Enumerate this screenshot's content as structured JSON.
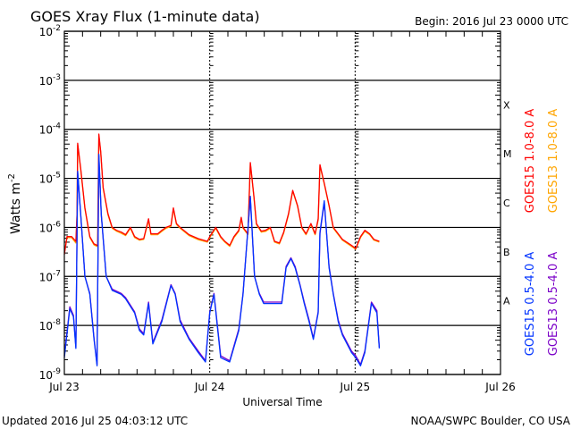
{
  "chart_data": {
    "type": "line",
    "title": "GOES Xray Flux (1-minute data)",
    "begin_label": "Begin:  2016 Jul 23 0000 UTC",
    "xlabel": "Universal Time",
    "ylabel": "Watts m",
    "ylabel_sup": "-2",
    "x_unit": "hours since 2016 Jul 23 0000 UTC",
    "xlim": [
      0,
      72
    ],
    "ylim": [
      1e-09,
      0.01
    ],
    "yscale": "log",
    "x_ticks": [
      {
        "x": 0,
        "label": "Jul 23"
      },
      {
        "x": 24,
        "label": "Jul 24"
      },
      {
        "x": 48,
        "label": "Jul 25"
      },
      {
        "x": 72,
        "label": "Jul 26"
      }
    ],
    "y_ticks": [
      {
        "exp": -2,
        "base": "10",
        "sup": "-2"
      },
      {
        "exp": -3,
        "base": "10",
        "sup": "-3"
      },
      {
        "exp": -4,
        "base": "10",
        "sup": "-4"
      },
      {
        "exp": -5,
        "base": "10",
        "sup": "-5"
      },
      {
        "exp": -6,
        "base": "10",
        "sup": "-6"
      },
      {
        "exp": -7,
        "base": "10",
        "sup": "-7"
      },
      {
        "exp": -8,
        "base": "10",
        "sup": "-8"
      },
      {
        "exp": -9,
        "base": "10",
        "sup": "-9"
      }
    ],
    "flare_classes": [
      {
        "label": "A",
        "exp": -7.5
      },
      {
        "label": "B",
        "exp": -6.5
      },
      {
        "label": "C",
        "exp": -5.5
      },
      {
        "label": "M",
        "exp": -4.5
      },
      {
        "label": "X",
        "exp": -3.5
      }
    ],
    "grid": true,
    "series": [
      {
        "name": "GOES13 1.0-8.0 A",
        "color": "#FFA500",
        "x": [
          0,
          0.45,
          1.2,
          1.9,
          2.1,
          2.2,
          2.7,
          3.4,
          4.2,
          4.9,
          5.4,
          5.5,
          5.7,
          6.0,
          6.4,
          7.2,
          7.9,
          8.6,
          9.4,
          10.1,
          10.9,
          11.6,
          12.4,
          13.1,
          13.9,
          14.3,
          15.4,
          16.1,
          16.8,
          17.6,
          18.0,
          18.5,
          19.1,
          20.6,
          22.1,
          23.6,
          24.0,
          25.0,
          25.8,
          26.5,
          27.3,
          28.0,
          28.8,
          29.2,
          29.5,
          30.3,
          30.7,
          31.3,
          31.7,
          32.5,
          33.2,
          34.0,
          34.7,
          35.5,
          36.2,
          37.0,
          37.7,
          38.5,
          39.2,
          39.9,
          40.7,
          41.4,
          41.9,
          42.2,
          42.9,
          43.7,
          44.4,
          45.9,
          47.4,
          48.1,
          48.9,
          49.6,
          50.4,
          51.1,
          52.0
        ],
        "y": [
          3e-07,
          6.2e-07,
          6.2e-07,
          4.8e-07,
          1.8e-06,
          4.8e-05,
          1.5e-05,
          2.4e-06,
          6.2e-07,
          4.4e-07,
          4.1e-07,
          4.1e-07,
          7.5e-05,
          3.4e-05,
          6.3e-06,
          1.8e-06,
          9.6e-07,
          8.4e-07,
          7.6e-07,
          6.8e-07,
          9.6e-07,
          6.2e-07,
          5.5e-07,
          5.7e-07,
          1.4e-06,
          7.1e-07,
          7.1e-07,
          8.3e-07,
          9.6e-07,
          1.05e-06,
          2.4e-06,
          1.15e-06,
          9.6e-07,
          6.8e-07,
          5.6e-07,
          5e-07,
          6.2e-07,
          9.6e-07,
          6.2e-07,
          5e-07,
          4.1e-07,
          6.2e-07,
          8.3e-07,
          1.5e-06,
          9.6e-07,
          7.1e-07,
          2e-05,
          4.1e-06,
          1.15e-06,
          8e-07,
          8.3e-07,
          9.6e-07,
          5e-07,
          4.6e-07,
          7.6e-07,
          1.8e-06,
          5.5e-06,
          2.7e-06,
          9.6e-07,
          7.1e-07,
          1.15e-06,
          7.1e-07,
          1.4e-06,
          1.8e-05,
          7.7e-06,
          2.7e-06,
          9.6e-07,
          5.5e-07,
          4.1e-07,
          3.6e-07,
          6.2e-07,
          8.3e-07,
          7.1e-07,
          5.5e-07,
          5e-07
        ]
      },
      {
        "name": "GOES15 1.0-8.0 A",
        "color": "#FF0000",
        "x": [
          0,
          0.45,
          1.2,
          1.9,
          2.1,
          2.2,
          2.7,
          3.4,
          4.2,
          4.9,
          5.4,
          5.5,
          5.7,
          6.0,
          6.4,
          7.2,
          7.9,
          8.6,
          9.4,
          10.1,
          10.9,
          11.6,
          12.4,
          13.1,
          13.9,
          14.3,
          15.4,
          16.1,
          16.8,
          17.6,
          18.0,
          18.5,
          19.1,
          20.6,
          22.1,
          23.6,
          24.0,
          25.0,
          25.8,
          26.5,
          27.3,
          28.0,
          28.8,
          29.2,
          29.5,
          30.3,
          30.7,
          31.3,
          31.7,
          32.5,
          33.2,
          34.0,
          34.7,
          35.5,
          36.2,
          37.0,
          37.7,
          38.5,
          39.2,
          39.9,
          40.7,
          41.4,
          41.9,
          42.2,
          42.9,
          43.7,
          44.4,
          45.9,
          47.4,
          48.1,
          48.9,
          49.6,
          50.4,
          51.1,
          52.0
        ],
        "y": [
          2.8e-07,
          6.5e-07,
          6.5e-07,
          5.2e-07,
          1.9e-06,
          5.2e-05,
          1.6e-05,
          2.5e-06,
          6.5e-07,
          4.6e-07,
          4.3e-07,
          4.3e-07,
          8e-05,
          3.5e-05,
          6.5e-06,
          1.9e-06,
          1e-06,
          8.7e-07,
          8e-07,
          7.1e-07,
          1e-06,
          6.5e-07,
          5.7e-07,
          5.9e-07,
          1.5e-06,
          7.4e-07,
          7.4e-07,
          8.7e-07,
          1e-06,
          1.1e-06,
          2.5e-06,
          1.2e-06,
          1e-06,
          7.1e-07,
          5.9e-07,
          5.2e-07,
          6.5e-07,
          1e-06,
          6.5e-07,
          5.2e-07,
          4.3e-07,
          6.5e-07,
          8.7e-07,
          1.6e-06,
          1e-06,
          7.4e-07,
          2.1e-05,
          4.3e-06,
          1.2e-06,
          8.4e-07,
          8.7e-07,
          1e-06,
          5.2e-07,
          4.8e-07,
          8e-07,
          1.9e-06,
          5.7e-06,
          2.8e-06,
          1e-06,
          7.4e-07,
          1.2e-06,
          7.4e-07,
          1.5e-06,
          1.9e-05,
          8e-06,
          2.8e-06,
          1e-06,
          5.7e-07,
          4.3e-07,
          3.7e-07,
          6.5e-07,
          8.7e-07,
          7.4e-07,
          5.7e-07,
          5.2e-07
        ]
      },
      {
        "name": "GOES13 0.5-4.0 A",
        "color": "#7B00C8",
        "x": [
          0,
          0.9,
          1.5,
          1.9,
          2.2,
          2.7,
          3.4,
          4.2,
          4.9,
          5.4,
          5.7,
          6.1,
          6.9,
          7.9,
          9.4,
          10.1,
          11.6,
          12.4,
          13.1,
          13.9,
          14.6,
          16.1,
          17.6,
          18.3,
          19.1,
          20.6,
          22.1,
          23.3,
          24.0,
          24.7,
          25.8,
          27.3,
          28.8,
          29.5,
          30.7,
          31.4,
          32.2,
          32.9,
          34.4,
          35.9,
          36.6,
          37.4,
          38.1,
          38.9,
          39.6,
          40.4,
          41.1,
          41.9,
          42.2,
          42.9,
          43.7,
          44.4,
          45.2,
          45.9,
          47.4,
          48.1,
          48.9,
          49.6,
          50.7,
          51.6,
          52.0
        ],
        "y": [
          2.4e-09,
          2.4e-08,
          1.6e-08,
          3.6e-09,
          1.3e-05,
          1.8e-06,
          1e-07,
          4.5e-08,
          5.5e-09,
          1.6e-09,
          2.9e-05,
          1.8e-06,
          1e-07,
          5.5e-08,
          4.5e-08,
          3.7e-08,
          1.9e-08,
          8.5e-09,
          6.8e-09,
          3e-08,
          4.5e-09,
          1.3e-08,
          6.8e-08,
          4.5e-08,
          1.3e-08,
          5.5e-09,
          3e-09,
          1.9e-09,
          1.9e-08,
          4.5e-08,
          2.4e-09,
          1.9e-09,
          8.5e-09,
          4.5e-08,
          4e-06,
          1e-07,
          4.5e-08,
          3e-08,
          3e-08,
          3e-08,
          1.6e-07,
          2.4e-07,
          1.6e-07,
          6.8e-08,
          3e-08,
          1.3e-08,
          5.5e-09,
          1.9e-08,
          7.5e-07,
          3.2e-06,
          1.6e-07,
          4.5e-08,
          1.3e-08,
          6.8e-09,
          3e-09,
          2.4e-09,
          1.6e-09,
          3e-09,
          3e-08,
          2e-08,
          3.6e-09
        ]
      },
      {
        "name": "GOES15 0.5-4.0 A",
        "color": "#0033FF",
        "x": [
          0,
          0.9,
          1.5,
          1.9,
          2.2,
          2.7,
          3.4,
          4.2,
          4.9,
          5.4,
          5.7,
          6.1,
          6.9,
          7.9,
          9.4,
          10.1,
          11.6,
          12.4,
          13.1,
          13.9,
          14.6,
          16.1,
          17.6,
          18.3,
          19.1,
          20.6,
          22.1,
          23.3,
          24.0,
          24.7,
          25.8,
          27.3,
          28.8,
          29.5,
          30.7,
          31.4,
          32.2,
          32.9,
          34.4,
          35.9,
          36.6,
          37.4,
          38.1,
          38.9,
          39.6,
          40.4,
          41.1,
          41.9,
          42.2,
          42.9,
          43.7,
          44.4,
          45.2,
          45.9,
          47.4,
          48.1,
          48.9,
          49.6,
          50.7,
          51.6,
          52.0
        ],
        "y": [
          2.2e-09,
          2.2e-08,
          1.5e-08,
          3.4e-09,
          1.4e-05,
          1.9e-06,
          1e-07,
          4.3e-08,
          5.2e-09,
          1.5e-09,
          3.1e-05,
          1.9e-06,
          1e-07,
          5.2e-08,
          4.3e-08,
          3.5e-08,
          1.8e-08,
          7.9e-09,
          6.4e-09,
          2.8e-08,
          4.2e-09,
          1.2e-08,
          6.5e-08,
          4.3e-08,
          1.2e-08,
          5.2e-09,
          2.8e-09,
          1.8e-09,
          1.8e-08,
          4.3e-08,
          2.2e-09,
          1.8e-09,
          7.9e-09,
          4.3e-08,
          4.3e-06,
          1e-07,
          4.3e-08,
          2.8e-08,
          2.8e-08,
          2.8e-08,
          1.5e-07,
          2.3e-07,
          1.5e-07,
          6.5e-08,
          2.8e-08,
          1.2e-08,
          5.2e-09,
          1.8e-08,
          8e-07,
          3.5e-06,
          1.5e-07,
          4.3e-08,
          1.2e-08,
          6.4e-09,
          2.8e-09,
          2.2e-09,
          1.5e-09,
          2.8e-09,
          2.8e-08,
          1.8e-08,
          3.4e-09
        ]
      }
    ],
    "legend_placement": "right-vertical"
  },
  "footer": {
    "updated": "Updated 2016 Jul 25 04:03:12 UTC",
    "credit": "NOAA/SWPC Boulder, CO USA"
  }
}
